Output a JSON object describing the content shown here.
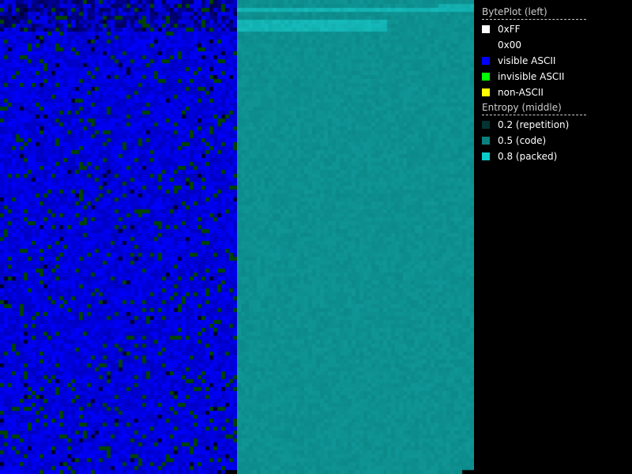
{
  "byteplot_legend": {
    "title": "BytePlot (left)",
    "items": [
      {
        "label": "0xFF",
        "color": "#ffffff"
      },
      {
        "label": "0x00",
        "color": "#000000"
      },
      {
        "label": "visible ASCII",
        "color": "#0000ff"
      },
      {
        "label": "invisible ASCII",
        "color": "#00ff00"
      },
      {
        "label": "non-ASCII",
        "color": "#ffff00"
      }
    ]
  },
  "entropy_legend": {
    "title": "Entropy (middle)",
    "items": [
      {
        "label": "0.2 (repetition)",
        "color": "#033333"
      },
      {
        "label": "0.5 (code)",
        "color": "#0a8080"
      },
      {
        "label": "0.8 (packed)",
        "color": "#0acccc"
      }
    ]
  }
}
